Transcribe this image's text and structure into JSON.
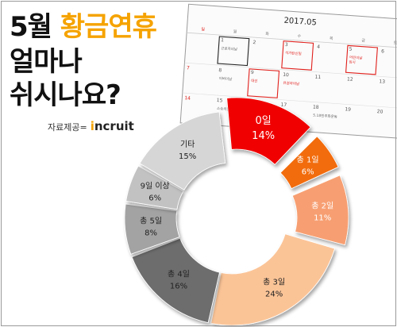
{
  "headline": {
    "line1_prefix": "5월 ",
    "line1_accent": "황금연휴",
    "line2": "얼마나",
    "line3": "쉬시나요?"
  },
  "source": {
    "label": "자료제공=",
    "logo_prefix": "i",
    "logo_rest": "ncruit"
  },
  "calendar": {
    "month_title": "2017.05",
    "weekdays": [
      "일",
      "월",
      "화",
      "수",
      "목",
      "금",
      "토"
    ],
    "dates": [
      [
        "",
        "1",
        "2",
        "3",
        "4",
        "5",
        "6"
      ],
      [
        "7",
        "8",
        "9",
        "10",
        "11",
        "12",
        "13"
      ],
      [
        "14",
        "15",
        "16",
        "17",
        "18",
        "19",
        "20"
      ]
    ],
    "notes": [
      {
        "row": 0,
        "col": 1,
        "text": "근로자의날"
      },
      {
        "row": 0,
        "col": 3,
        "text": "석가탄신일"
      },
      {
        "row": 0,
        "col": 5,
        "text": "어린이날"
      },
      {
        "row": 0,
        "col": 5,
        "text2": "임시"
      },
      {
        "row": 1,
        "col": 1,
        "text": "어버이날"
      },
      {
        "row": 1,
        "col": 2,
        "text": "대선"
      },
      {
        "row": 1,
        "col": 3,
        "text": "유권자의날"
      },
      {
        "row": 2,
        "col": 1,
        "text": "스승의날"
      },
      {
        "row": 2,
        "col": 4,
        "text": "5.18민주화운동"
      }
    ],
    "accent_color": "#e0201c"
  },
  "chart_data": {
    "type": "pie",
    "categories": [
      "0일",
      "총 1일",
      "총 2일",
      "총 3일",
      "총 4일",
      "총 5일",
      "9일 이상",
      "기타"
    ],
    "values": [
      14,
      6,
      11,
      24,
      16,
      8,
      6,
      15
    ],
    "value_labels": [
      "14%",
      "6%",
      "11%",
      "24%",
      "16%",
      "8%",
      "6%",
      "15%"
    ],
    "colors": [
      "#f00000",
      "#f26c10",
      "#f79f72",
      "#fbc497",
      "#6d6d6d",
      "#a3a3a3",
      "#c2c2c2",
      "#d6d6d6"
    ],
    "label_colors": [
      "#ffffff",
      "#ffffff",
      "#ffffff",
      "#222222",
      "#222222",
      "#222222",
      "#222222",
      "#222222"
    ],
    "unit": "%"
  }
}
